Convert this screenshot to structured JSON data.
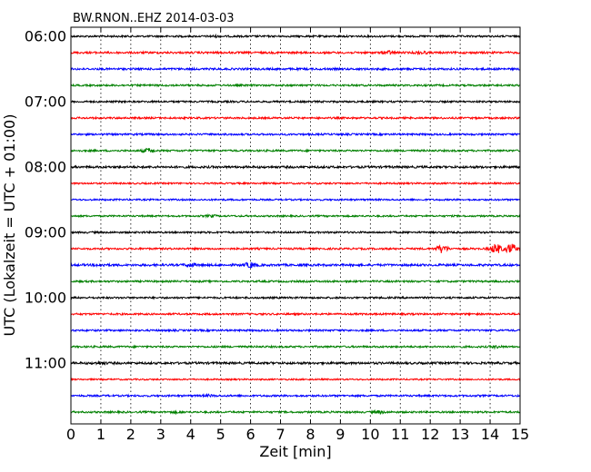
{
  "chart_data": {
    "type": "line",
    "title": "BW.RNON..EHZ 2014-03-03",
    "xlabel": "Zeit  [min]",
    "ylabel": "UTC (Lokalzeit = UTC + 01:00)",
    "xlim": [
      0,
      15
    ],
    "x_ticks": [
      0,
      1,
      2,
      3,
      4,
      5,
      6,
      7,
      8,
      9,
      10,
      11,
      12,
      13,
      14,
      15
    ],
    "y_tick_labels": [
      "06:00",
      "07:00",
      "08:00",
      "09:00",
      "10:00",
      "11:00"
    ],
    "grid": true,
    "trace_colors": [
      "#000000",
      "#ff0000",
      "#0000ff",
      "#008000"
    ],
    "traces": [
      {
        "start": "06:00",
        "color": "#000000",
        "amplitude": 1.0,
        "events": [
          {
            "t": 4.8,
            "amp": 1.6
          }
        ]
      },
      {
        "start": "06:15",
        "color": "#ff0000",
        "amplitude": 1.1,
        "events": [
          {
            "t": 10.6,
            "amp": 2.5
          },
          {
            "t": 11.7,
            "amp": 2.2
          }
        ]
      },
      {
        "start": "06:30",
        "color": "#0000ff",
        "amplitude": 1.1,
        "events": []
      },
      {
        "start": "06:45",
        "color": "#008000",
        "amplitude": 1.0,
        "events": []
      },
      {
        "start": "07:00",
        "color": "#000000",
        "amplitude": 1.0,
        "events": []
      },
      {
        "start": "07:15",
        "color": "#ff0000",
        "amplitude": 1.0,
        "events": []
      },
      {
        "start": "07:30",
        "color": "#0000ff",
        "amplitude": 1.0,
        "events": []
      },
      {
        "start": "07:45",
        "color": "#008000",
        "amplitude": 1.0,
        "events": [
          {
            "t": 2.6,
            "amp": 3.0
          }
        ]
      },
      {
        "start": "08:00",
        "color": "#000000",
        "amplitude": 1.2,
        "events": []
      },
      {
        "start": "08:15",
        "color": "#ff0000",
        "amplitude": 0.9,
        "events": []
      },
      {
        "start": "08:30",
        "color": "#0000ff",
        "amplitude": 0.9,
        "events": []
      },
      {
        "start": "08:45",
        "color": "#008000",
        "amplitude": 0.9,
        "events": [
          {
            "t": 4.7,
            "amp": 1.8
          }
        ]
      },
      {
        "start": "09:00",
        "color": "#000000",
        "amplitude": 1.0,
        "events": []
      },
      {
        "start": "09:15",
        "color": "#ff0000",
        "amplitude": 1.0,
        "events": [
          {
            "t": 12.4,
            "amp": 5.0
          },
          {
            "t": 14.2,
            "amp": 6.0
          },
          {
            "t": 14.7,
            "amp": 6.0
          }
        ]
      },
      {
        "start": "09:30",
        "color": "#0000ff",
        "amplitude": 1.2,
        "events": [
          {
            "t": 1.0,
            "amp": 2.0
          },
          {
            "t": 4.0,
            "amp": 2.5
          },
          {
            "t": 6.0,
            "amp": 3.5
          }
        ]
      },
      {
        "start": "09:45",
        "color": "#008000",
        "amplitude": 1.0,
        "events": []
      },
      {
        "start": "10:00",
        "color": "#000000",
        "amplitude": 1.0,
        "events": []
      },
      {
        "start": "10:15",
        "color": "#ff0000",
        "amplitude": 1.0,
        "events": []
      },
      {
        "start": "10:30",
        "color": "#0000ff",
        "amplitude": 1.0,
        "events": []
      },
      {
        "start": "10:45",
        "color": "#008000",
        "amplitude": 1.0,
        "events": [
          {
            "t": 14.2,
            "amp": 1.8
          }
        ]
      },
      {
        "start": "11:00",
        "color": "#000000",
        "amplitude": 1.2,
        "events": [
          {
            "t": 1.0,
            "amp": 2.0
          }
        ]
      },
      {
        "start": "11:15",
        "color": "#ff0000",
        "amplitude": 0.8,
        "events": []
      },
      {
        "start": "11:30",
        "color": "#0000ff",
        "amplitude": 1.0,
        "events": [
          {
            "t": 4.6,
            "amp": 1.8
          }
        ]
      },
      {
        "start": "11:45",
        "color": "#008000",
        "amplitude": 1.0,
        "events": [
          {
            "t": 10.3,
            "amp": 2.2
          },
          {
            "t": 3.5,
            "amp": 1.6
          }
        ]
      }
    ]
  }
}
